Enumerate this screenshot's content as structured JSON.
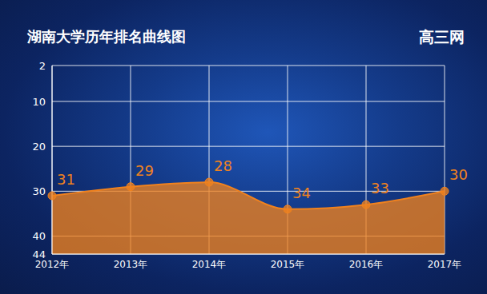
{
  "chart_data": {
    "type": "area",
    "title": "湖南大学历年排名曲线图",
    "source": "高三网",
    "categories": [
      "2012年",
      "2013年",
      "2014年",
      "2015年",
      "2016年",
      "2017年"
    ],
    "values": [
      31,
      29,
      28,
      34,
      33,
      30
    ],
    "color": "#f0821e",
    "ylim": [
      2,
      44
    ],
    "yticks": [
      2,
      10,
      20,
      30,
      40,
      44
    ],
    "grid": true,
    "data_labels": true,
    "marker": "circle"
  }
}
